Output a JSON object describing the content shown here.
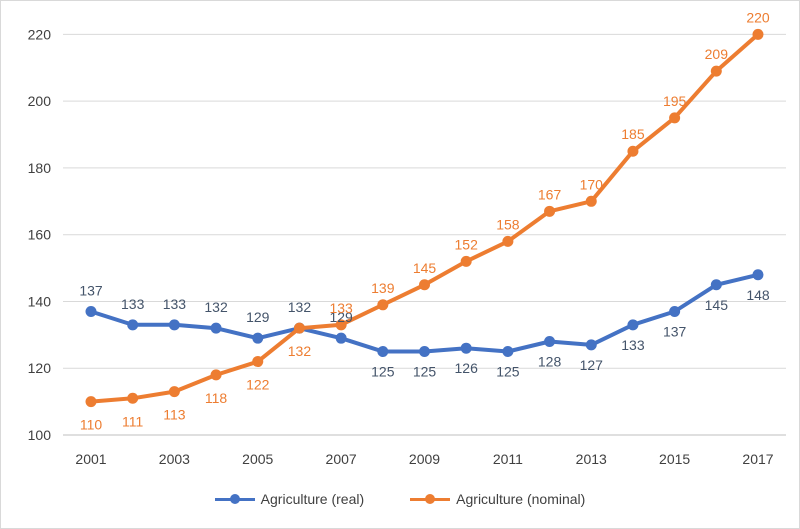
{
  "chart_data": {
    "type": "line",
    "x": [
      2001,
      2002,
      2003,
      2004,
      2005,
      2006,
      2007,
      2008,
      2009,
      2010,
      2011,
      2012,
      2013,
      2014,
      2015,
      2016,
      2017
    ],
    "x_tick_labels": [
      "2001",
      "2003",
      "2005",
      "2007",
      "2009",
      "2011",
      "2013",
      "2015",
      "2017"
    ],
    "y_tick_labels": [
      "100",
      "120",
      "140",
      "160",
      "180",
      "200",
      "220"
    ],
    "ylim": [
      100,
      230
    ],
    "grid": "horizontal",
    "legend_position": "bottom",
    "title": "",
    "xlabel": "",
    "ylabel": "",
    "series": [
      {
        "name": "Agriculture (real)",
        "color": "#4472c4",
        "label_color": "#44546a",
        "values": [
          137,
          133,
          133,
          132,
          129,
          132,
          129,
          125,
          125,
          126,
          125,
          128,
          127,
          133,
          137,
          145,
          148
        ]
      },
      {
        "name": "Agriculture (nominal)",
        "color": "#ed7d31",
        "label_color": "#ed7d31",
        "values": [
          110,
          111,
          113,
          118,
          122,
          132,
          133,
          139,
          145,
          152,
          158,
          167,
          170,
          185,
          195,
          209,
          220
        ]
      }
    ]
  }
}
